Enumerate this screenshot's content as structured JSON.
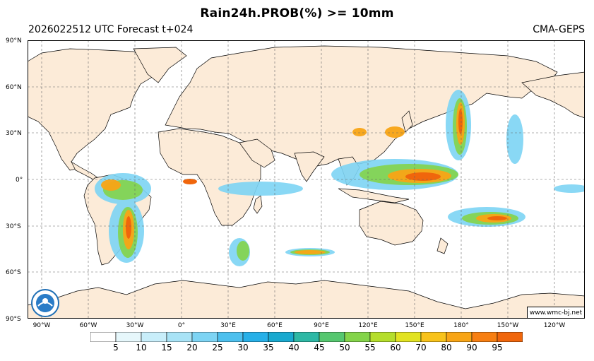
{
  "title": "Rain24h.PROB(%) >= 10mm",
  "subtitle_left": "2026022512 UTC Forecast t+024",
  "subtitle_right": "CMA-GEPS",
  "credit": "www.wmc-bj.net",
  "colors": {
    "land": "#fcebd8",
    "ocean": "#ffffff",
    "grid": "#666666",
    "coast": "#000000"
  },
  "lat_labels": [
    "90°N",
    "60°N",
    "30°N",
    "0°",
    "30°S",
    "60°S",
    "90°S"
  ],
  "lon_labels": [
    "90°W",
    "60°W",
    "30°W",
    "0°",
    "30°E",
    "60°E",
    "90°E",
    "120°E",
    "150°E",
    "180°",
    "150°W",
    "120°W"
  ],
  "colorbar": {
    "labels": [
      "5",
      "10",
      "15",
      "20",
      "25",
      "30",
      "35",
      "40",
      "45",
      "50",
      "55",
      "60",
      "70",
      "80",
      "90",
      "95"
    ],
    "colors": [
      "#ffffff",
      "#e6f7fb",
      "#c8eefa",
      "#a8e3f6",
      "#7dd4f4",
      "#4dc0ee",
      "#27b0e8",
      "#19a9cf",
      "#2eb8a5",
      "#56c770",
      "#84d44a",
      "#b5de2c",
      "#e2e322",
      "#f8c31b",
      "#f8a516",
      "#f77f12",
      "#f0660c"
    ]
  }
}
